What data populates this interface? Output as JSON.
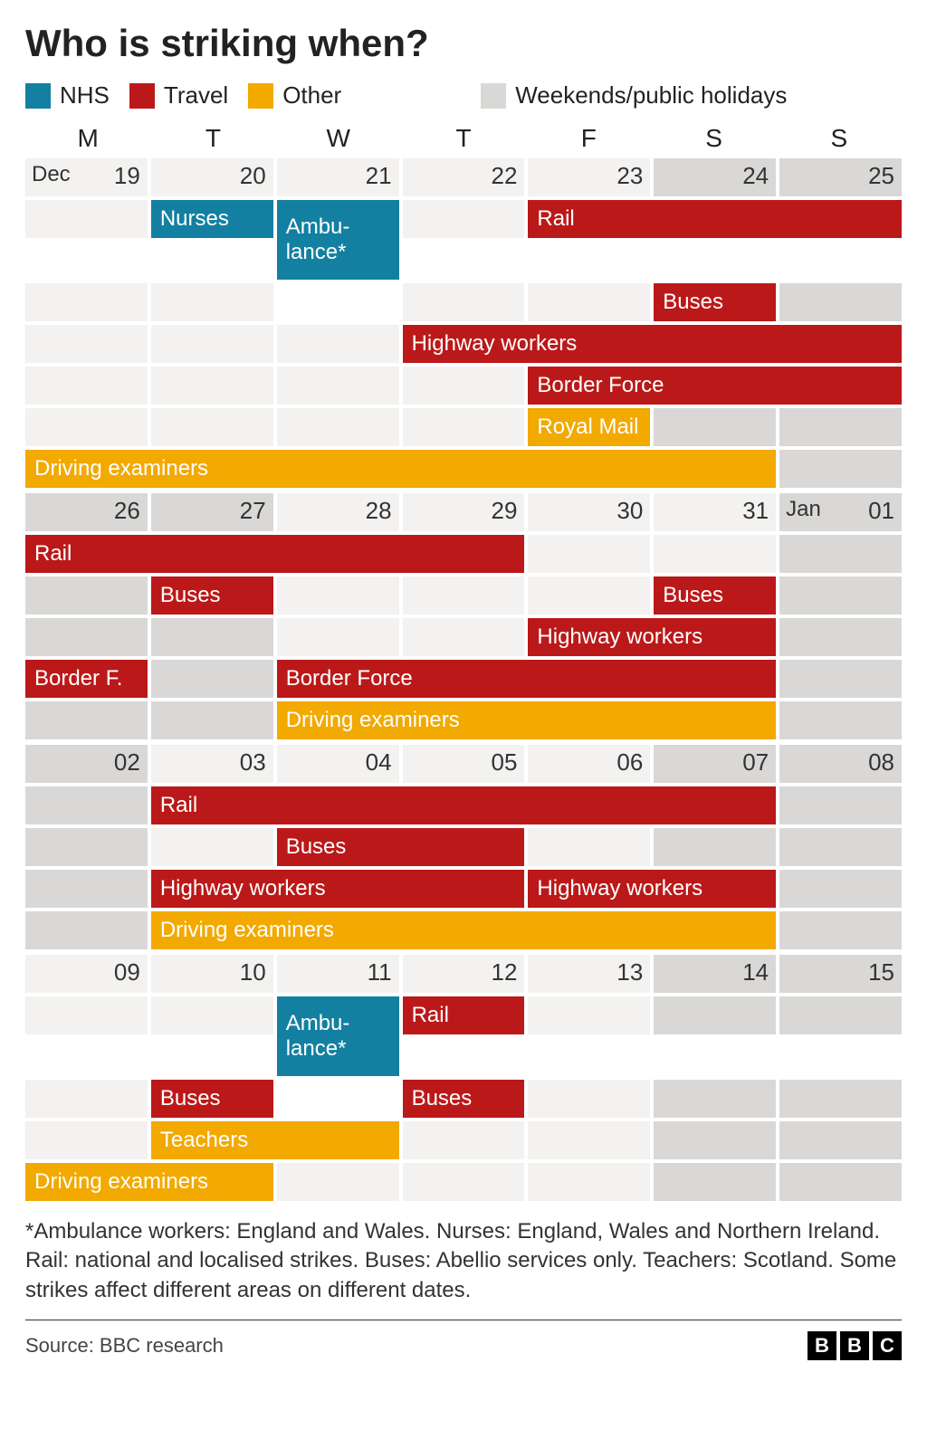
{
  "colors": {
    "nhs": "#1380a1",
    "travel": "#bb1919",
    "other": "#f2a900",
    "weekend": "#d9d8d7",
    "weekday": "#f3f2f1",
    "text_white": "#ffffff",
    "text_dark": "#222222"
  },
  "title": "Who is striking when?",
  "legend": {
    "nhs": "NHS",
    "travel": "Travel",
    "other": "Other",
    "weekend": "Weekends/public holidays"
  },
  "day_headers": [
    "M",
    "T",
    "W",
    "T",
    "F",
    "S",
    "S"
  ],
  "weeks": [
    {
      "dates": [
        "19",
        "20",
        "21",
        "22",
        "23",
        "24",
        "25"
      ],
      "month_labels": {
        "0": "Dec"
      },
      "weekend_cols": [
        5,
        6
      ],
      "rows": [
        {
          "events": [
            {
              "label": "Nurses",
              "cat": "nhs",
              "start": 1,
              "span": 1
            },
            {
              "label": "Ambu-\nlance*",
              "cat": "nhs",
              "start": 2,
              "span": 1,
              "tall": true
            },
            {
              "label": "Rail",
              "cat": "travel",
              "start": 4,
              "span": 3
            }
          ]
        },
        {
          "events": [
            {
              "label": "Buses",
              "cat": "travel",
              "start": 5,
              "span": 1
            }
          ],
          "merge_col": 2
        },
        {
          "events": [
            {
              "label": "Highway workers",
              "cat": "travel",
              "start": 3,
              "span": 4
            }
          ]
        },
        {
          "events": [
            {
              "label": "Border Force",
              "cat": "travel",
              "start": 4,
              "span": 3
            }
          ]
        },
        {
          "events": [
            {
              "label": "Royal Mail",
              "cat": "other",
              "start": 4,
              "span": 1
            }
          ]
        },
        {
          "events": [
            {
              "label": "Driving examiners",
              "cat": "other",
              "start": 0,
              "span": 6
            }
          ]
        }
      ]
    },
    {
      "dates": [
        "26",
        "27",
        "28",
        "29",
        "30",
        "31",
        "01"
      ],
      "month_labels": {
        "6": "Jan"
      },
      "weekend_cols": [
        0,
        1,
        6
      ],
      "rows": [
        {
          "events": [
            {
              "label": "Rail",
              "cat": "travel",
              "start": 0,
              "span": 4
            }
          ]
        },
        {
          "events": [
            {
              "label": "Buses",
              "cat": "travel",
              "start": 1,
              "span": 1
            },
            {
              "label": "Buses",
              "cat": "travel",
              "start": 5,
              "span": 1
            }
          ]
        },
        {
          "events": [
            {
              "label": "Highway workers",
              "cat": "travel",
              "start": 4,
              "span": 2
            }
          ]
        },
        {
          "events": [
            {
              "label": "Border F.",
              "cat": "travel",
              "start": 0,
              "span": 1
            },
            {
              "label": "Border Force",
              "cat": "travel",
              "start": 2,
              "span": 4
            }
          ]
        },
        {
          "events": [
            {
              "label": "Driving examiners",
              "cat": "other",
              "start": 2,
              "span": 4
            }
          ]
        }
      ]
    },
    {
      "dates": [
        "02",
        "03",
        "04",
        "05",
        "06",
        "07",
        "08"
      ],
      "month_labels": {},
      "weekend_cols": [
        0,
        5,
        6
      ],
      "rows": [
        {
          "events": [
            {
              "label": "Rail",
              "cat": "travel",
              "start": 1,
              "span": 5
            }
          ]
        },
        {
          "events": [
            {
              "label": "Buses",
              "cat": "travel",
              "start": 2,
              "span": 2
            }
          ]
        },
        {
          "events": [
            {
              "label": "Highway workers",
              "cat": "travel",
              "start": 1,
              "span": 3
            },
            {
              "label": "Highway workers",
              "cat": "travel",
              "start": 4,
              "span": 2
            }
          ]
        },
        {
          "events": [
            {
              "label": "Driving examiners",
              "cat": "other",
              "start": 1,
              "span": 5
            }
          ]
        }
      ]
    },
    {
      "dates": [
        "09",
        "10",
        "11",
        "12",
        "13",
        "14",
        "15"
      ],
      "month_labels": {},
      "weekend_cols": [
        5,
        6
      ],
      "rows": [
        {
          "events": [
            {
              "label": "Ambu-\nlance*",
              "cat": "nhs",
              "start": 2,
              "span": 1,
              "tall": true
            },
            {
              "label": "Rail",
              "cat": "travel",
              "start": 3,
              "span": 1
            }
          ]
        },
        {
          "events": [
            {
              "label": "Buses",
              "cat": "travel",
              "start": 1,
              "span": 1
            },
            {
              "label": "Buses",
              "cat": "travel",
              "start": 3,
              "span": 1
            }
          ],
          "merge_col": 2
        },
        {
          "events": [
            {
              "label": "Teachers",
              "cat": "other",
              "start": 1,
              "span": 2
            }
          ]
        },
        {
          "events": [
            {
              "label": "Driving examiners",
              "cat": "other",
              "start": 0,
              "span": 2
            }
          ]
        }
      ]
    }
  ],
  "footnote": "*Ambulance workers: England and Wales. Nurses: England, Wales and Northern Ireland. Rail: national and localised strikes. Buses: Abellio services only. Teachers: Scotland. Some strikes affect different areas on different dates.",
  "source": "Source: BBC research",
  "logo": [
    "B",
    "B",
    "C"
  ]
}
